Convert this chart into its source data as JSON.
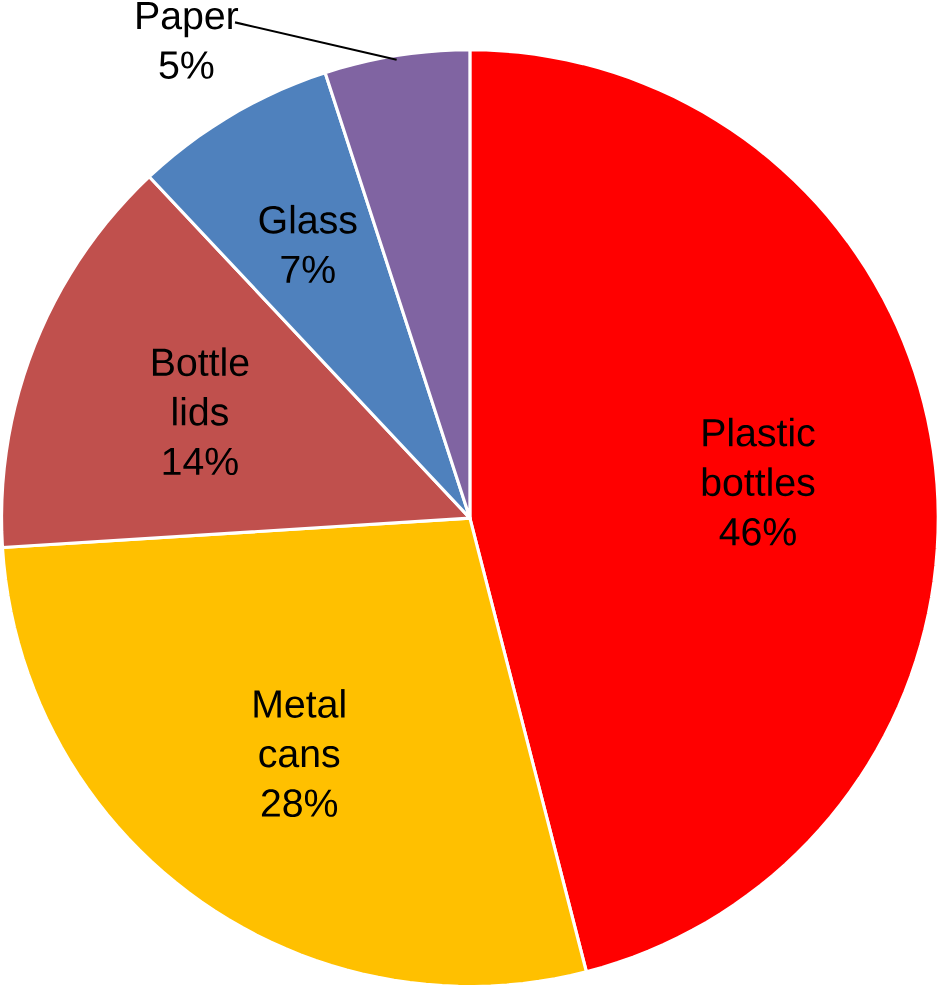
{
  "chart_data": {
    "type": "pie",
    "categories": [
      "Plastic bottles",
      "Metal cans",
      "Bottle lids",
      "Glass",
      "Paper"
    ],
    "values": [
      46,
      28,
      14,
      7,
      5
    ],
    "colors": [
      "#ff0000",
      "#ffc000",
      "#c0504d",
      "#4f81bd",
      "#8064a2"
    ],
    "data_labels": true,
    "value_labels": [
      "46%",
      "28%",
      "14%",
      "7%",
      "5%"
    ]
  }
}
